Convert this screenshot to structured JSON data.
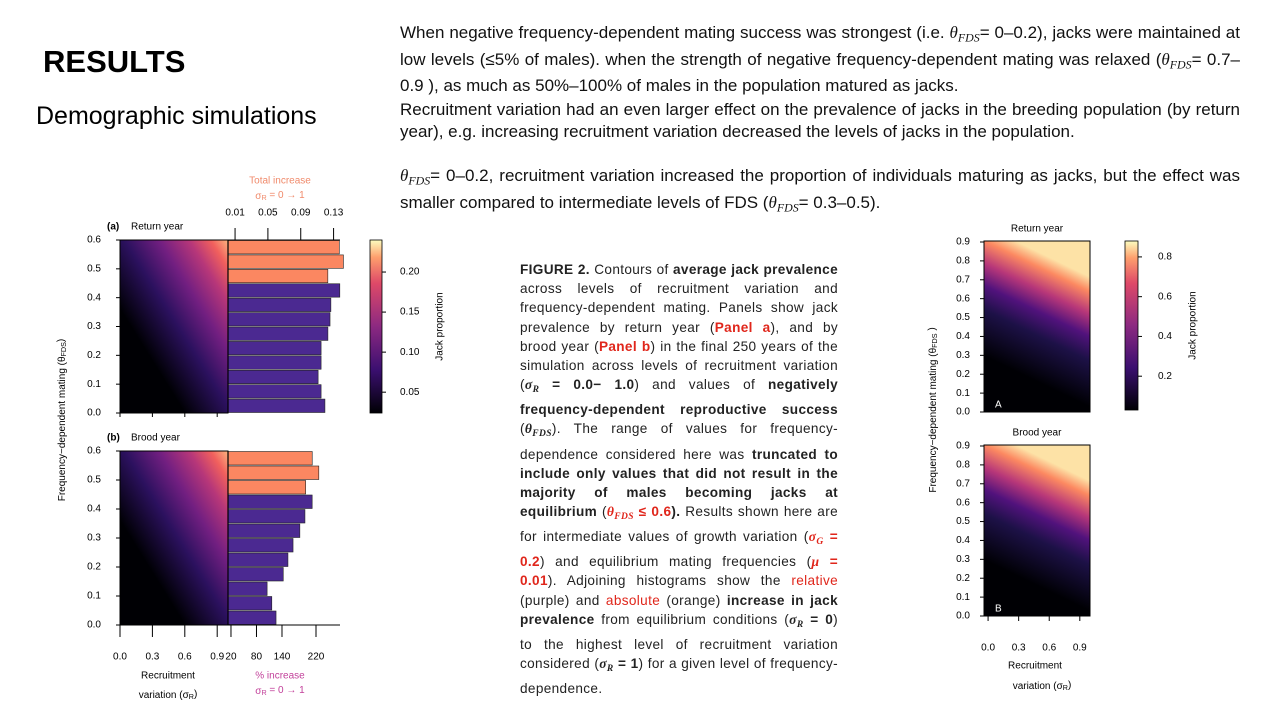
{
  "header": {
    "title": "RESULTS",
    "subtitle": "Demographic simulations"
  },
  "paragraphs": [
    [
      {
        "t": "When negative frequency-dependent mating success was strongest (i.e. "
      },
      {
        "m": "θ",
        "sub": "FDS",
        "post": "= 0–0.2), jacks were maintained at low levels (≤5% of males). when the strength of negative frequency-dependent mating was relaxed ("
      },
      {
        "m": "θ",
        "sub": "FDS",
        "post": "= 0.7–0.9 ), as much as 50%–100% of males in the population matured as jacks."
      }
    ],
    [
      {
        "t": "Recruitment variation had an even larger effect on the prevalence of jacks in the breeding population (by return year), e.g. increasing recruitment variation decreased the levels of jacks  in the population."
      }
    ],
    [
      {
        "m": "θ",
        "sub": "FDS",
        "post": "= 0–0.2, recruitment variation increased the proportion of individuals maturing as jacks, but the effect was smaller compared to intermediate levels of FDS ("
      },
      {
        "m": "θ",
        "sub": "FDS",
        "post": "= 0.3–0.5)."
      }
    ]
  ],
  "caption": [
    {
      "t": "FIGURE 2.",
      "b": true
    },
    {
      "t": " Contours of "
    },
    {
      "t": "average jack prevalence",
      "b": true
    },
    {
      "t": " across levels of recruitment variation and frequency-dependent mating. Panels show jack prevalence by return year ("
    },
    {
      "t": "Panel a",
      "b": true,
      "red": true
    },
    {
      "t": "), and by brood year ("
    },
    {
      "t": "Panel b",
      "b": true,
      "red": true
    },
    {
      "t": ") in the final 250 years of the simulation across levels of recruitment variation ("
    },
    {
      "m": "σ",
      "sub": "R",
      "post": " = 0.0− 1.0",
      "b": true
    },
    {
      "t": ") and values of "
    },
    {
      "t": "negatively frequency-dependent reproductive success",
      "b": true
    },
    {
      "t": " ("
    },
    {
      "m": "θ",
      "sub": "FDS",
      "b": true
    },
    {
      "t": "). The range of values for frequency-dependence considered here was "
    },
    {
      "t": "truncated to include only values that did not result in the majority of males becoming jacks at equilibrium",
      "b": true
    },
    {
      "t": " ("
    },
    {
      "m": "θ",
      "sub": "FDS",
      "post": " ≤ 0.6",
      "b": true,
      "red": true
    },
    {
      "t": ").",
      "b": true
    },
    {
      "t": " Results shown here are for intermediate values of growth variation ("
    },
    {
      "m": "σ",
      "sub": "G",
      "post": " = 0.2",
      "b": true,
      "red": true
    },
    {
      "t": ") and equilibrium mating frequencies ("
    },
    {
      "m": "μ",
      "post": " = 0.01",
      "b": true,
      "red": true
    },
    {
      "t": "). Adjoining histograms show the "
    },
    {
      "t": "relative",
      "red": true
    },
    {
      "t": " (purple) and "
    },
    {
      "t": "absolute",
      "red": true
    },
    {
      "t": " (orange) "
    },
    {
      "t": "increase in jack prevalence",
      "b": true
    },
    {
      "t": " from equilibrium conditions ("
    },
    {
      "m": "σ",
      "sub": "R",
      "post": " = 0",
      "b": true
    },
    {
      "t": ") to the highest level of recruitment variation considered ("
    },
    {
      "m": "σ",
      "sub": "R",
      "post": " = 1",
      "b": true
    },
    {
      "t": ") for a given level of frequency-dependence."
    }
  ],
  "chart_data": [
    {
      "type": "heatmap-bars",
      "ylabel": {
        "pre": "Frequency−dependent mating (θ",
        "sub": "FDS",
        "post": ")"
      },
      "xlabel": {
        "line1": "Recruitment",
        "pre": "variation (σ",
        "sub": "R",
        "post": ")"
      },
      "xlim": [
        0,
        1
      ],
      "xticks": [
        {
          "value": 0,
          "label": "0.0"
        },
        0.3,
        0.6,
        0.9
      ],
      "ylim": [
        0,
        0.6
      ],
      "yticks": [
        {
          "value": 0,
          "label": "0.0"
        },
        0.1,
        0.2,
        0.3,
        0.4,
        0.5,
        0.6
      ],
      "panels": [
        {
          "label": "(a)",
          "title": "Return year"
        },
        {
          "label": "(b)",
          "title": "Brood year"
        }
      ],
      "bar_y": [
        0,
        0.05,
        0.1,
        0.15,
        0.2,
        0.25,
        0.3,
        0.35,
        0.4,
        0.45,
        0.5,
        0.55
      ],
      "top_title": "Total increase",
      "top_sub": {
        "pre": "σ",
        "sub": "R",
        "post": " = 0 → 1"
      },
      "top_lim": [
        0.0014,
        0.15
      ],
      "top_ticks": [
        0.01,
        0.05,
        0.09,
        0.13
      ],
      "bottom_title": "% increase",
      "bottom_sub": {
        "pre": "σ",
        "sub": "R",
        "post": " = 0 → 1"
      },
      "bottom_lim": [
        13,
        300
      ],
      "bottom_ticks": [
        20,
        80,
        140,
        220
      ],
      "series": [
        {
          "name": "relative",
          "color": "#4b2991",
          "panels": [
            [
              241,
              232,
              225,
              232,
              232,
              248,
              253,
              255,
              276,
              null,
              null,
              null
            ],
            [
              126,
              116,
              105,
              143,
              154,
              166,
              182,
              194,
              211,
              null,
              null,
              null
            ]
          ]
        },
        {
          "name": "absolute",
          "color": "#fb8761",
          "panels": [
            [
              null,
              null,
              null,
              null,
              null,
              null,
              null,
              null,
              null,
              0.123,
              0.142,
              0.137
            ],
            [
              null,
              null,
              null,
              null,
              null,
              null,
              null,
              null,
              null,
              0.096,
              0.112,
              0.104
            ]
          ]
        }
      ],
      "clim": [
        0.024,
        0.24
      ],
      "cticks": [
        0.05,
        {
          "value": 0.1,
          "label": "0.10"
        },
        0.15,
        {
          "value": 0.2,
          "label": "0.20"
        }
      ],
      "clabel": "Jack proportion"
    },
    {
      "type": "heatmap",
      "ylabel": {
        "pre": "Frequency−dependent mating (θ",
        "sub": "FDS",
        "post": " )"
      },
      "xlabel": {
        "line1": "Recruitment",
        "pre": "variation (σ",
        "sub": "R",
        "post": ")"
      },
      "xlim": [
        -0.04,
        1.0
      ],
      "xticks": [
        {
          "value": 0,
          "label": "0.0"
        },
        0.3,
        0.6,
        0.9
      ],
      "ylim": [
        0,
        0.9
      ],
      "yticks": [
        {
          "value": 0,
          "label": "0.0"
        },
        0.1,
        0.2,
        0.3,
        0.4,
        0.5,
        0.6,
        0.7,
        0.8,
        0.9
      ],
      "panels": [
        {
          "label": "A",
          "title": "Return year"
        },
        {
          "label": "B",
          "title": "Brood year"
        }
      ],
      "clim": [
        0.03,
        0.88
      ],
      "cticks": [
        0.2,
        0.4,
        0.6,
        0.8
      ],
      "clabel": "Jack proportion"
    }
  ]
}
